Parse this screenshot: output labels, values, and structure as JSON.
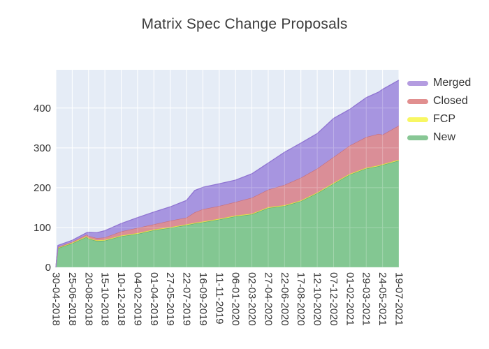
{
  "chart_data": {
    "type": "area",
    "stacked": true,
    "title": "Matrix Spec Change Proposals",
    "xlabel": "",
    "ylabel": "",
    "ylim": [
      0,
      496
    ],
    "y_ticks": [
      0,
      100,
      200,
      300,
      400
    ],
    "x_tick_labels": [
      "30-04-2018",
      "25-06-2018",
      "20-08-2018",
      "15-10-2018",
      "10-12-2018",
      "04-02-2019",
      "01-04-2019",
      "27-05-2019",
      "22-07-2019",
      "16-09-2019",
      "11-11-2019",
      "06-01-2020",
      "02-03-2020",
      "27-04-2020",
      "22-06-2020",
      "17-08-2020",
      "12-10-2020",
      "07-12-2020",
      "01-02-2021",
      "29-03-2021",
      "24-05-2021",
      "19-07-2021"
    ],
    "plot_bg": "#e5ecf6",
    "grid_color": "#ffffff",
    "tick_label_color": "#333333",
    "title_color": "#3c3c3c",
    "legend_position": "right",
    "legend_order": [
      3,
      2,
      1,
      0
    ],
    "x": [
      "30-04-2018",
      "07-05-2018",
      "25-06-2018",
      "13-08-2018",
      "20-08-2018",
      "17-09-2018",
      "15-10-2018",
      "10-12-2018",
      "04-02-2019",
      "01-04-2019",
      "27-05-2019",
      "22-07-2019",
      "19-08-2019",
      "16-09-2019",
      "11-11-2019",
      "06-01-2020",
      "02-03-2020",
      "27-04-2020",
      "22-06-2020",
      "17-08-2020",
      "12-10-2020",
      "07-12-2020",
      "01-02-2021",
      "29-03-2021",
      "10-05-2021",
      "24-05-2021",
      "19-07-2021"
    ],
    "series": [
      {
        "name": "New",
        "fill": "#83c792",
        "line": "#5aa96c",
        "legend_color": "#88c795",
        "values": [
          0,
          48,
          60,
          76,
          72,
          66,
          67,
          78,
          84,
          93,
          99,
          106,
          110,
          113,
          120,
          128,
          133,
          149,
          154,
          166,
          186,
          210,
          233,
          248,
          254,
          257,
          268
        ]
      },
      {
        "name": "FCP",
        "fill": "#f2ee68",
        "line": "#ded43c",
        "legend_color": "#f8f763",
        "values": [
          0,
          1,
          2,
          2,
          2,
          2,
          2,
          2,
          2,
          2,
          2,
          2,
          2,
          2,
          2,
          2,
          2,
          2,
          2,
          2,
          2,
          2,
          2,
          2,
          2,
          2,
          2
        ]
      },
      {
        "name": "Closed",
        "fill": "#da8e97",
        "line": "#c66f7d",
        "legend_color": "#e18f8f",
        "values": [
          0,
          2,
          2,
          4,
          5,
          5,
          6,
          10,
          13,
          13,
          16,
          17,
          26,
          31,
          32,
          34,
          40,
          44,
          51,
          57,
          60,
          65,
          71,
          77,
          79,
          74,
          86
        ]
      },
      {
        "name": "Merged",
        "fill": "#a795e0",
        "line": "#8f74d2",
        "legend_color": "#b49ce0",
        "values": [
          0,
          4,
          4,
          5,
          9,
          14,
          17,
          20,
          26,
          31,
          35,
          43,
          55,
          55,
          56,
          55,
          60,
          67,
          82,
          87,
          88,
          97,
          91,
          99,
          105,
          114,
          114
        ]
      }
    ]
  }
}
